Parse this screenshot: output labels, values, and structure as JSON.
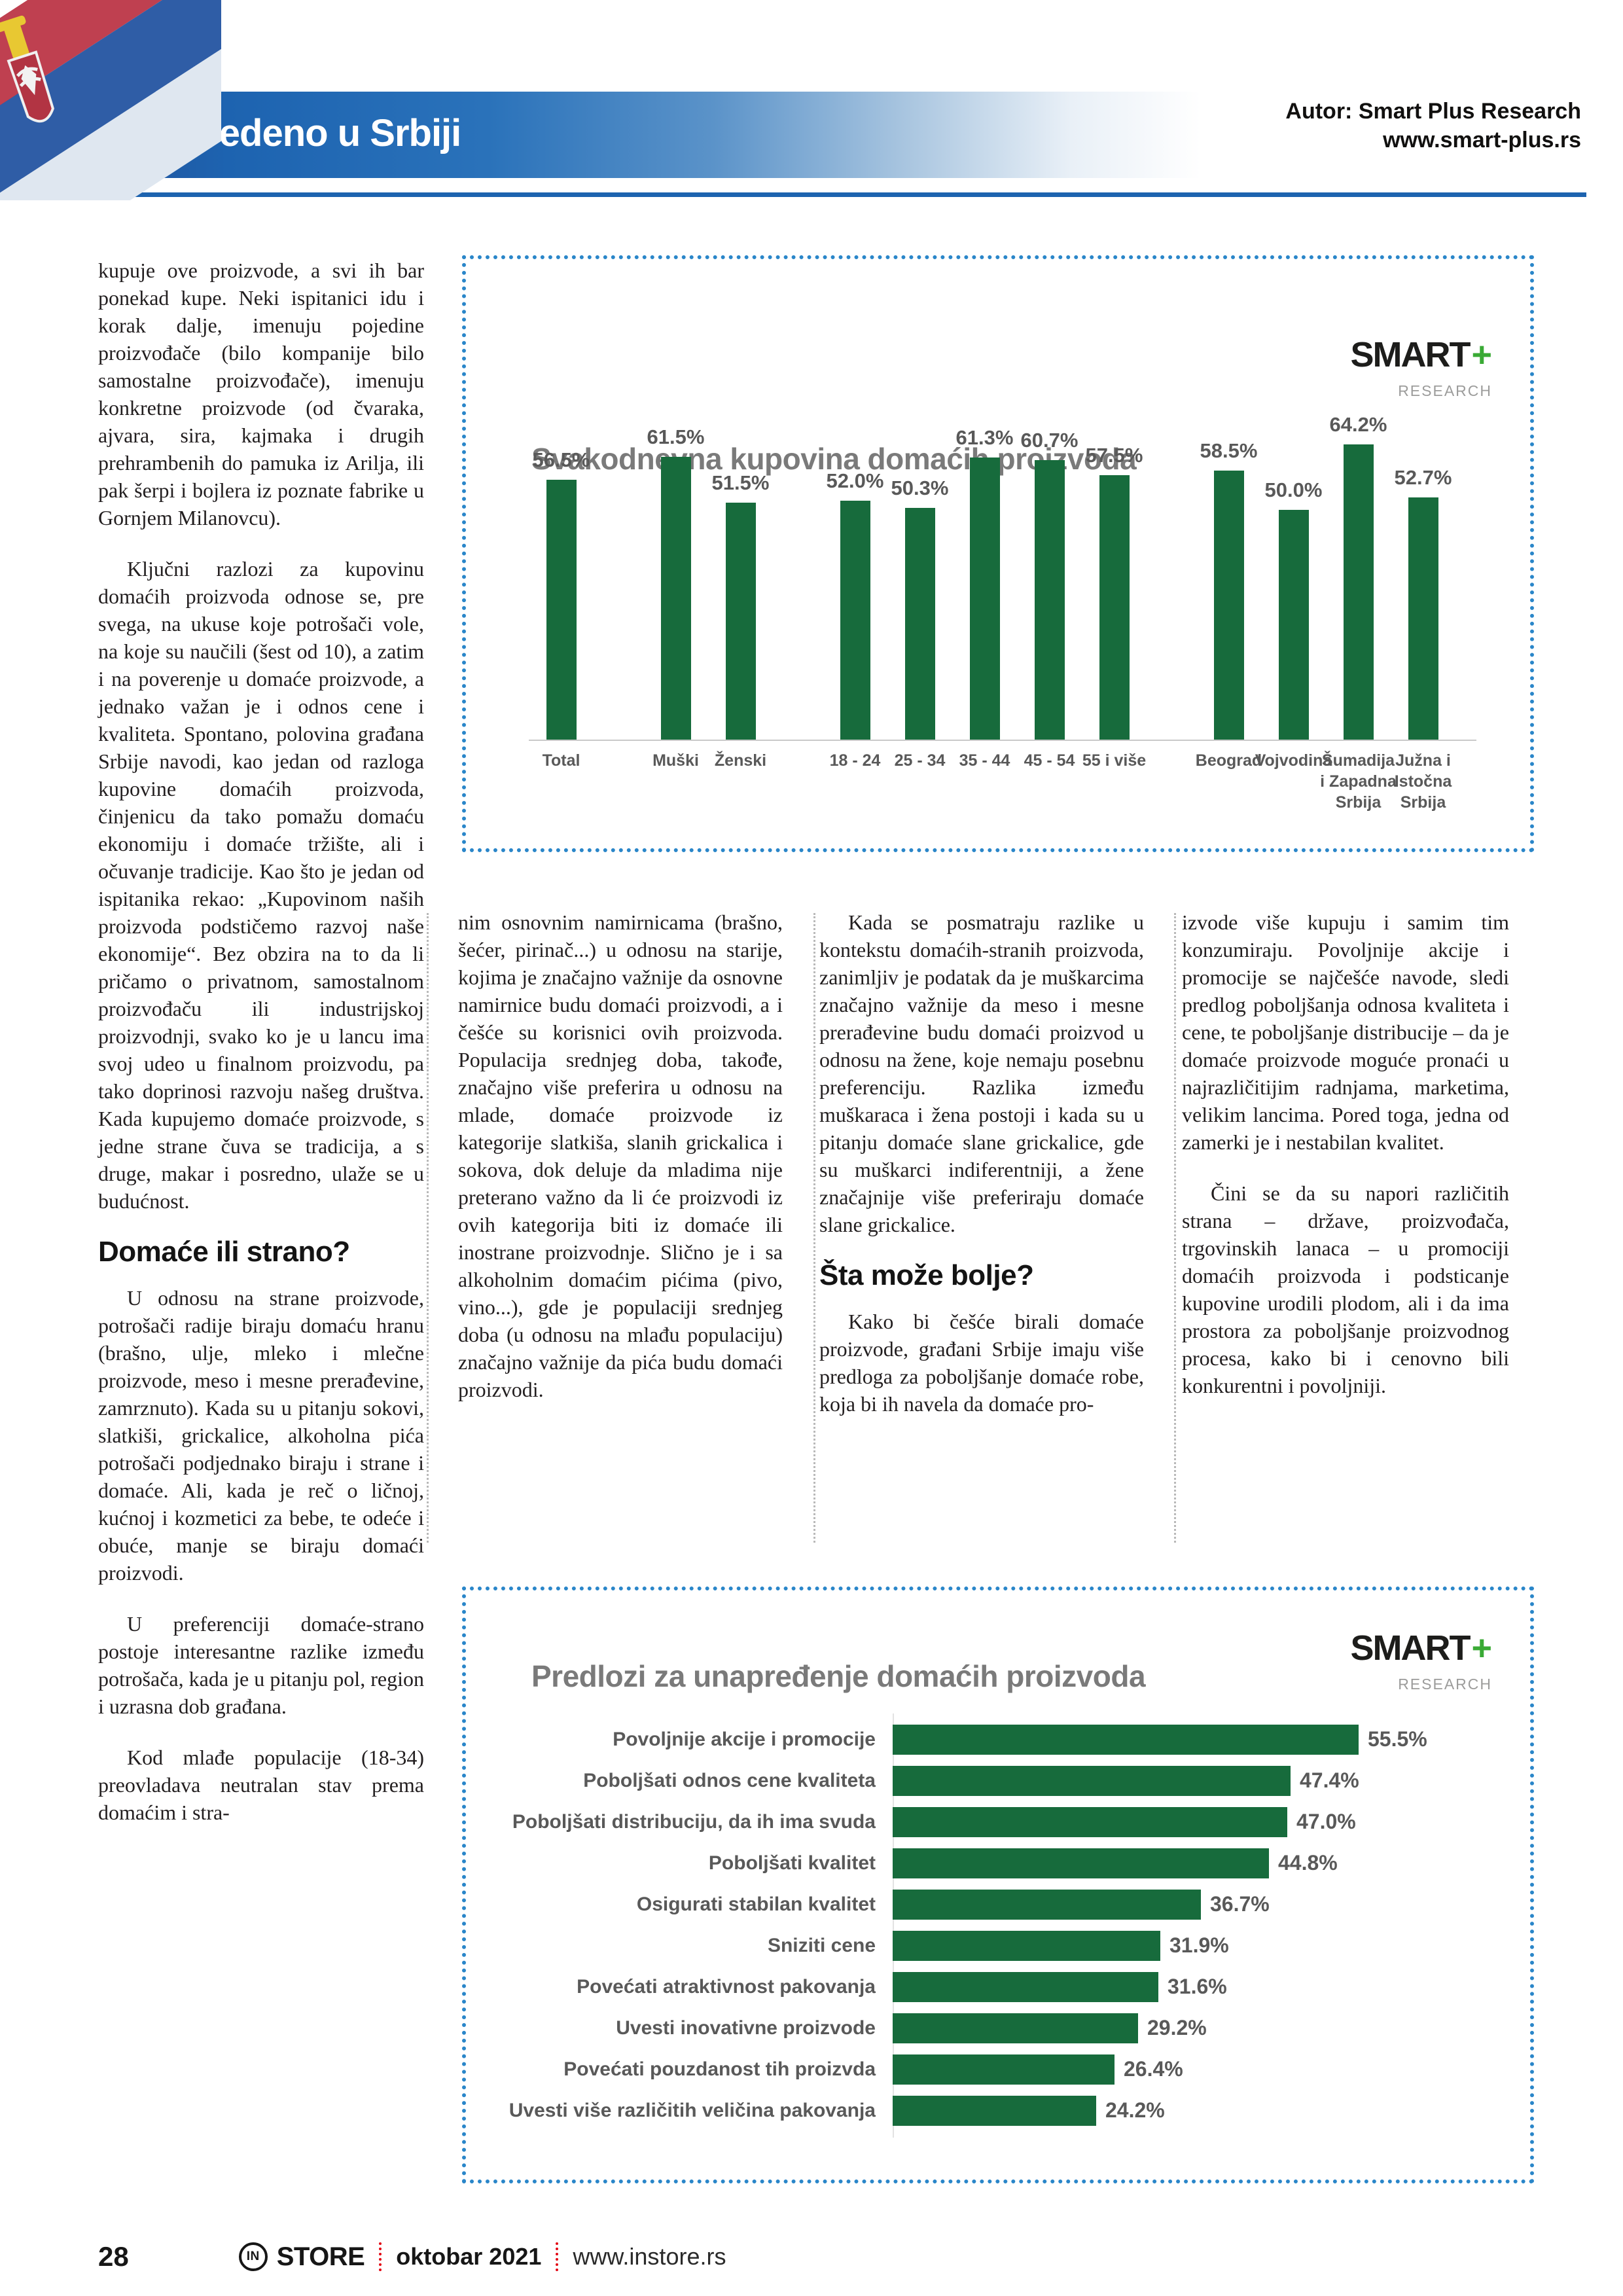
{
  "header": {
    "title": "proizvedeno u Srbiji",
    "author_line1": "Autor: Smart Plus Research",
    "author_line2": "www.smart-plus.rs"
  },
  "logo": {
    "smart": "SMART",
    "plus": "+",
    "research": "RESEARCH"
  },
  "article": {
    "col1": {
      "p1": "kupuje ove proizvode, a svi ih bar ponekad kupe. Neki ispitanici idu i korak dalje, imenuju pojedine proizvođače (bilo kompanije bilo samostalne proizvođače), imenuju konkretne proizvode (od čvaraka, ajvara, sira, kajmaka i drugih prehrambenih do pamuka iz Arilja, ili pak šerpi i bojlera iz poznate fabrike u Gornjem Milanovcu).",
      "p2": "Ključni razlozi za kupovinu domaćih proizvoda odnose se, pre svega, na ukuse koje potrošači vole, na koje su naučili (šest od 10), a zatim i na poverenje u domaće proizvode, a jednako važan je i odnos cene i kvaliteta. Spontano, polovina građana Srbije navodi, kao jedan od razloga kupovine domaćih proizvoda, činjenicu da tako pomažu domaću ekonomiju i domaće tržište, ali i očuvanje tradicije. Kao što je jedan od ispitanika rekao: „Kupovinom naših proizvoda podstičemo razvoj naše ekonomije“. Bez obzira na to da li pričamo o privatnom, samostalnom proizvođaču ili industrijskoj proizvodnji, svako ko je u lancu ima svoj udeo u finalnom proizvodu, pa tako doprinosi razvoju našeg društva. Kada kupujemo domaće proizvode, s jedne strane čuva se tradicija, a s druge, makar i posredno, ulaže se u budućnost.",
      "heading": "Domaće ili strano?",
      "p3": "U odnosu na strane proizvode, potrošači radije biraju domaću hranu (brašno, ulje, mleko i mlečne proizvode, meso i mesne prerađevine, zamrznuto). Kada su u pitanju sokovi, slatkiši, grickalice, alkoholna pića potrošači podjednako biraju i strane i domaće. Ali, kada je reč o ličnoj, kućnoj i kozmetici za bebe, te odeće i obuće, manje se biraju domaći proizvodi.",
      "p4": "U preferenciji domaće-strano postoje interesantne razlike između potrošača, kada je u pitanju pol, region i uzrasna dob građana.",
      "p5": "Kod mlađe populacije (18-34) preovladava neutralan stav prema domaćim i stra-"
    },
    "col2": {
      "p1": "nim osnovnim namirnicama (brašno, šećer, pirinač...) u odnosu na starije, kojima je značajno važnije da osnovne namirnice budu domaći proizvodi, a i češće su korisnici ovih proizvoda. Populacija srednjeg doba, takođe, značajno više preferira u odnosu na mlade, domaće proizvode iz kategorije slatkiša, slanih grickalica i sokova, dok deluje da mladima nije preterano važno da li će proizvodi iz ovih kategorija biti iz domaće ili inostrane proizvodnje. Slično je i sa alkoholnim domaćim pićima (pivo, vino...), gde je populaciji srednjeg doba (u odnosu na mlađu populaciju) značajno važnije da pića budu domaći proizvodi."
    },
    "col3": {
      "p1": "Kada se posmatraju razlike u kontekstu domaćih-stranih proizvoda, zanimljiv je podatak da je muškarcima značajno važnije da meso i mesne prerađevine budu domaći proizvod u odnosu na žene, koje nemaju posebnu preferenciju. Razlika između muškaraca i žena postoji i kada su u pitanju domaće slane grickalice, gde su muškarci indiferentniji, a žene značajnije više preferiraju domaće slane grickalice.",
      "heading": "Šta može bolje?",
      "p2": "Kako bi češće birali domaće proizvode, građani Srbije imaju više predloga za poboljšanje domaće robe, koja bi ih navela da domaće pro-"
    },
    "col4": {
      "p1": "izvode više kupuju i samim tim konzumiraju. Povoljnije akcije i promocije se najčešće navode, sledi predlog poboljšanja odnosa kvaliteta i cene, te poboljšanje distribucije – da je domaće proizvode moguće pronaći u najrazličitijim radnjama, marketima, velikim lancima. Pored toga, jedna od zamerki je i nestabilan kvalitet.",
      "p2": "Čini se da su napori različitih strana – države, proizvođača, trgovinskih lanaca – u promociji domaćih proizvoda i podsticanje kupovine urodili plodom, ali i da ima prostora za poboljšanje proizvodnog procesa, kako bi i cenovno bili konkurentni i povoljniji."
    }
  },
  "chart_data": [
    {
      "type": "bar",
      "title": "Svakodnevna kupovina domaćih proizvoda",
      "ylabel": "",
      "xlabel": "",
      "ylim": [
        0,
        70
      ],
      "unit": "%",
      "grid": false,
      "legend": "none",
      "bar_color": "#176b3c",
      "groups": [
        [
          {
            "label": "Total",
            "value": 56.5
          }
        ],
        [
          {
            "label": "Muški",
            "value": 61.5
          },
          {
            "label": "Ženski",
            "value": 51.5
          }
        ],
        [
          {
            "label": "18 - 24",
            "value": 52.0
          },
          {
            "label": "25 - 34",
            "value": 50.3
          },
          {
            "label": "35 - 44",
            "value": 61.3
          },
          {
            "label": "45 - 54",
            "value": 60.7
          },
          {
            "label": "55 i više",
            "value": 57.5
          }
        ],
        [
          {
            "label": "Beograd",
            "value": 58.5
          },
          {
            "label": "Vojvodina",
            "value": 50.0
          },
          {
            "label": "Šumadija i Zapadna Srbija",
            "value": 64.2
          },
          {
            "label": "Južna i Istočna Srbija",
            "value": 52.7
          }
        ]
      ]
    },
    {
      "type": "bar-horizontal",
      "title": "Predlozi za unapređenje domaćih proizvoda",
      "xlim": [
        0,
        60
      ],
      "unit": "%",
      "grid": false,
      "legend": "none",
      "bar_color": "#176b3c",
      "categories": [
        "Povoljnije akcije i promocije",
        "Poboljšati odnos cene kvaliteta",
        "Poboljšati distribuciju, da ih ima svuda",
        "Poboljšati kvalitet",
        "Osigurati stabilan kvalitet",
        "Sniziti cene",
        "Povećati atraktivnost pakovanja",
        "Uvesti inovativne proizvode",
        "Povećati pouzdanost tih proizvda",
        "Uvesti više različitih veličina pakovanja"
      ],
      "values": [
        55.5,
        47.4,
        47.0,
        44.8,
        36.7,
        31.9,
        31.6,
        29.2,
        26.4,
        24.2
      ]
    }
  ],
  "footer": {
    "page_number": "28",
    "brand_circle": "IN",
    "brand": "STORE",
    "issue": "oktobar 2021",
    "site": "www.instore.rs"
  },
  "colors": {
    "banner_blue": "#1d63b0",
    "rule_blue": "#1d63af",
    "panel_dot_blue": "#2a86c9",
    "bar_green": "#176b3c",
    "chart_title_gray": "#7a7a7a",
    "chart_text_gray": "#595959",
    "footer_red": "#e30613",
    "logo_plus_green": "#3aaa35"
  }
}
